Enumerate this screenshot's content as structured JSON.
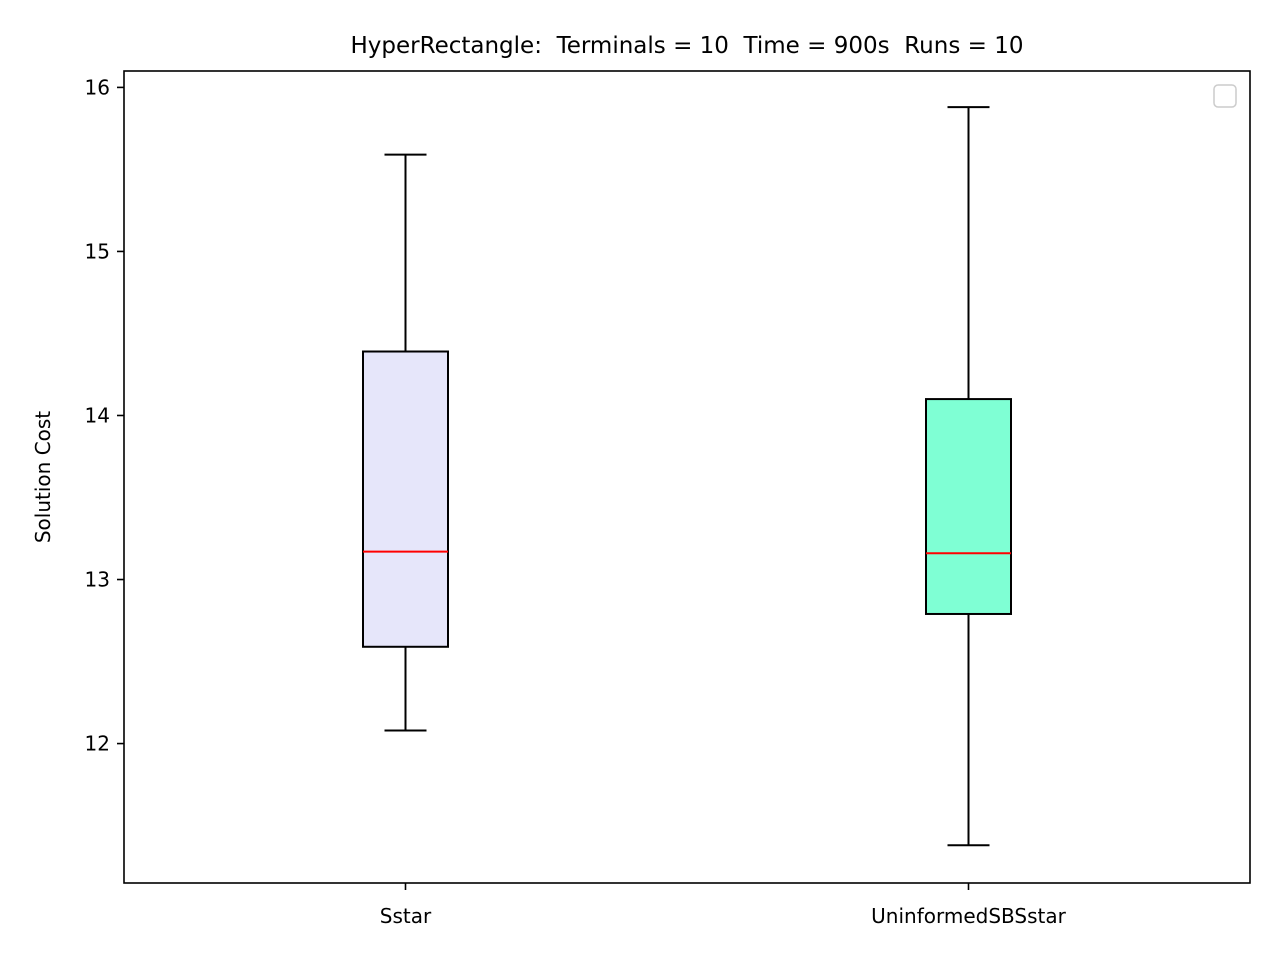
{
  "chart_data": {
    "type": "box",
    "title": "HyperRectangle:  Terminals = 10  Time = 900s  Runs = 10",
    "xlabel": "",
    "ylabel": "Solution Cost",
    "ylim": [
      11.15,
      16.1
    ],
    "yticks": [
      12,
      13,
      14,
      15,
      16
    ],
    "ytick_labels": [
      "12",
      "13",
      "14",
      "15",
      "16"
    ],
    "grid": false,
    "legend": "top-right, empty",
    "median_color": "#ff0000",
    "series": [
      {
        "name": "Sstar",
        "whisker_low": 12.08,
        "q1": 12.59,
        "median": 13.17,
        "q3": 14.39,
        "whisker_high": 15.59,
        "color": "#e6e6fa"
      },
      {
        "name": "UninformedSBSstar",
        "whisker_low": 11.38,
        "q1": 12.79,
        "median": 13.16,
        "q3": 14.1,
        "whisker_high": 15.88,
        "color": "#7fffd4"
      }
    ]
  }
}
